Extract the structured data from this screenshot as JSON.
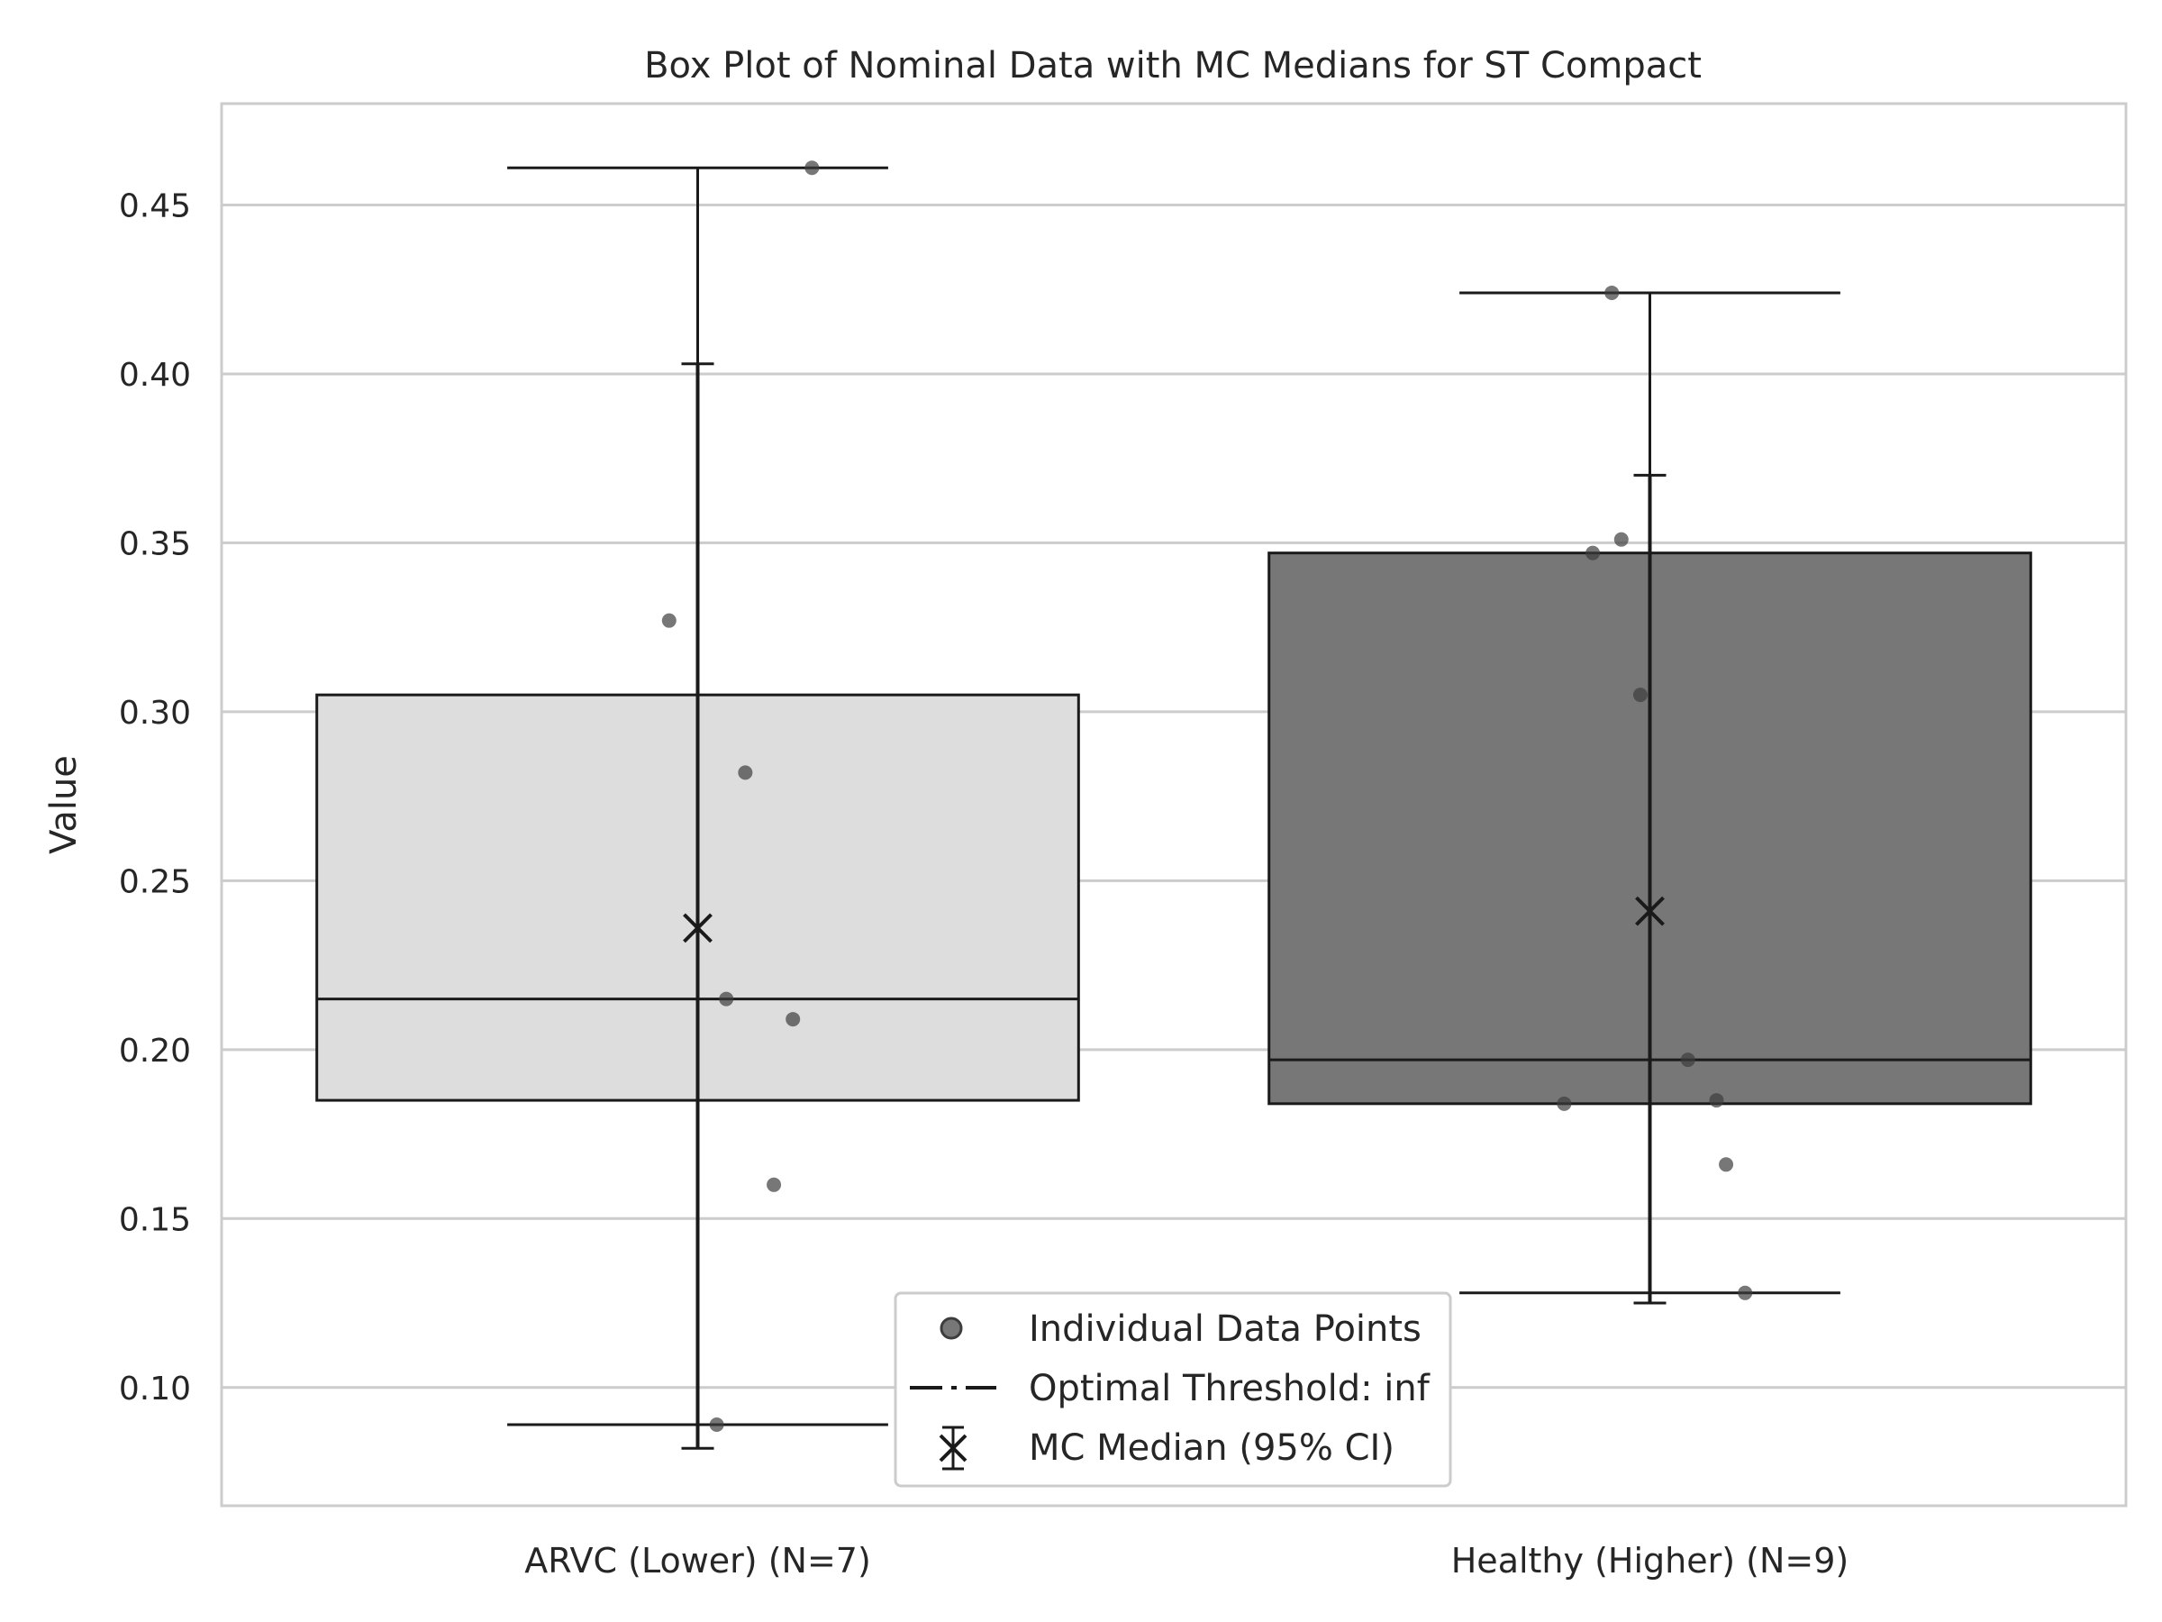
{
  "chart_data": {
    "type": "box",
    "title": "Box Plot of Nominal Data with MC Medians for ST Compact",
    "xlabel": "",
    "ylabel": "Value",
    "ylim": [
      0.065,
      0.48
    ],
    "yticks": [
      0.1,
      0.15,
      0.2,
      0.25,
      0.3,
      0.35,
      0.4,
      0.45
    ],
    "ytick_labels": [
      "0.10",
      "0.15",
      "0.20",
      "0.25",
      "0.30",
      "0.35",
      "0.40",
      "0.45"
    ],
    "grid": "horizontal",
    "legend_position": "bottom-center",
    "categories": [
      "ARVC (Lower) (N=7)",
      "Healthy (Higher) (N=9)"
    ],
    "boxes": [
      {
        "q1": 0.185,
        "median": 0.215,
        "q3": 0.305,
        "whisker_low": 0.089,
        "whisker_high": 0.461,
        "fill": "#dddddd",
        "points": [
          0.461,
          0.327,
          0.282,
          0.215,
          0.209,
          0.16,
          0.089
        ],
        "jitter": [
          0.12,
          -0.03,
          0.05,
          0.03,
          0.1,
          0.08,
          0.02
        ],
        "mc_median": 0.236,
        "mc_ci_low": 0.082,
        "mc_ci_high": 0.403
      },
      {
        "q1": 0.184,
        "median": 0.197,
        "q3": 0.347,
        "whisker_low": 0.128,
        "whisker_high": 0.424,
        "fill": "#777777",
        "points": [
          0.424,
          0.351,
          0.347,
          0.305,
          0.197,
          0.185,
          0.184,
          0.166,
          0.128
        ],
        "jitter": [
          -0.04,
          -0.03,
          -0.06,
          -0.01,
          0.04,
          0.07,
          -0.09,
          0.08,
          0.1
        ],
        "mc_median": 0.241,
        "mc_ci_low": 0.125,
        "mc_ci_high": 0.37
      }
    ],
    "legend": [
      {
        "label": "Individual Data Points",
        "marker": "point"
      },
      {
        "label": "Optimal Threshold: inf",
        "marker": "dashdot"
      },
      {
        "label": "MC Median (95% CI)",
        "marker": "x-errorbar"
      }
    ],
    "colors": {
      "frame": "#cccccc",
      "grid": "#cccccc",
      "line": "#1a1a1a",
      "point": "#3d3d3d"
    }
  }
}
